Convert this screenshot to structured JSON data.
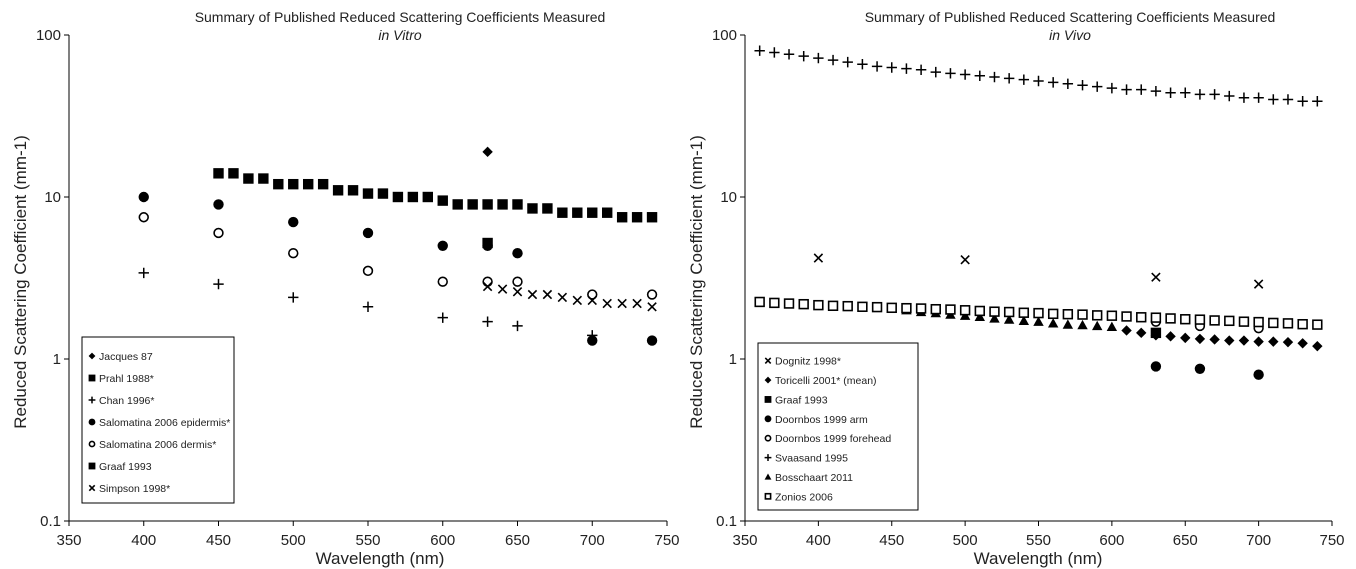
{
  "chart_data": [
    {
      "type": "scatter",
      "title": "Summary of Published Reduced Scattering Coefficients Measured",
      "subtitle": "in Vitro",
      "xlabel": "Wavelength (nm)",
      "ylabel": "Reduced Scattering Coefficient (mm-1)",
      "xlim": [
        350,
        750
      ],
      "ylim": [
        0.1,
        100
      ],
      "yscale": "log",
      "xticks": [
        "350",
        "400",
        "450",
        "500",
        "550",
        "600",
        "650",
        "700",
        "750"
      ],
      "yticks": [
        "0.1",
        "1",
        "10",
        "100"
      ],
      "legend_position": "bottom-left",
      "series": [
        {
          "name": "Jacques 87",
          "marker": "diamond",
          "x": [
            630
          ],
          "y": [
            19
          ]
        },
        {
          "name": "Prahl 1988*",
          "marker": "square",
          "x": [
            450,
            460,
            470,
            480,
            490,
            500,
            510,
            520,
            530,
            540,
            550,
            560,
            570,
            580,
            590,
            600,
            610,
            620,
            630,
            640,
            650,
            660,
            670,
            680,
            690,
            700,
            710,
            720,
            730,
            740
          ],
          "y": [
            14,
            14,
            13,
            13,
            12,
            12,
            12,
            12,
            11,
            11,
            10.5,
            10.5,
            10,
            10,
            10,
            9.5,
            9,
            9,
            9,
            9,
            9,
            8.5,
            8.5,
            8,
            8,
            8,
            8,
            7.5,
            7.5,
            7.5
          ]
        },
        {
          "name": "Chan 1996*",
          "marker": "plus",
          "x": [
            400,
            450,
            500,
            550,
            600,
            630,
            650,
            700
          ],
          "y": [
            3.4,
            2.9,
            2.4,
            2.1,
            1.8,
            1.7,
            1.6,
            1.4
          ]
        },
        {
          "name": "Salomatina 2006 epidermis*",
          "marker": "circle-filled",
          "x": [
            400,
            450,
            500,
            550,
            600,
            630,
            650,
            700,
            740
          ],
          "y": [
            10,
            9,
            7,
            6,
            5,
            5,
            4.5,
            1.3,
            1.3
          ]
        },
        {
          "name": "Salomatina 2006 dermis*",
          "marker": "circle-open",
          "x": [
            400,
            450,
            500,
            550,
            600,
            630,
            650,
            700,
            740
          ],
          "y": [
            7.5,
            6,
            4.5,
            3.5,
            3,
            3,
            3,
            2.5,
            2.5
          ]
        },
        {
          "name": "Graaf 1993",
          "marker": "square",
          "x": [
            630
          ],
          "y": [
            5.2
          ]
        },
        {
          "name": "Simpson 1998*",
          "marker": "x",
          "x": [
            630,
            640,
            650,
            660,
            670,
            680,
            690,
            700,
            710,
            720,
            730,
            740
          ],
          "y": [
            2.8,
            2.7,
            2.6,
            2.5,
            2.5,
            2.4,
            2.3,
            2.3,
            2.2,
            2.2,
            2.2,
            2.1
          ]
        }
      ]
    },
    {
      "type": "scatter",
      "title": "Summary of Published Reduced Scattering Coefficients Measured",
      "subtitle": "in Vivo",
      "xlabel": "Wavelength (nm)",
      "ylabel": "Reduced Scattering Coefficient (mm-1)",
      "xlim": [
        350,
        750
      ],
      "ylim": [
        0.1,
        100
      ],
      "yscale": "log",
      "xticks": [
        "350",
        "400",
        "450",
        "500",
        "550",
        "600",
        "650",
        "700",
        "750"
      ],
      "yticks": [
        "0.1",
        "1",
        "10",
        "100"
      ],
      "legend_position": "bottom-left",
      "series": [
        {
          "name": "Dognitz 1998*",
          "marker": "x",
          "x": [
            400,
            500,
            630,
            700
          ],
          "y": [
            4.2,
            4.1,
            3.2,
            2.9
          ]
        },
        {
          "name": "Toricelli 2001* (mean)",
          "marker": "diamond",
          "x": [
            610,
            620,
            630,
            640,
            650,
            660,
            670,
            680,
            690,
            700,
            710,
            720,
            730,
            740
          ],
          "y": [
            1.5,
            1.45,
            1.4,
            1.38,
            1.35,
            1.33,
            1.32,
            1.3,
            1.3,
            1.28,
            1.28,
            1.27,
            1.25,
            1.2
          ]
        },
        {
          "name": "Graaf 1993",
          "marker": "square",
          "x": [
            630
          ],
          "y": [
            1.45
          ]
        },
        {
          "name": "Doornbos 1999 arm",
          "marker": "circle-filled",
          "x": [
            630,
            660,
            700
          ],
          "y": [
            0.9,
            0.87,
            0.8
          ]
        },
        {
          "name": "Doornbos 1999 forehead",
          "marker": "circle-open",
          "x": [
            630,
            660,
            700
          ],
          "y": [
            1.7,
            1.6,
            1.55
          ]
        },
        {
          "name": "Svaasand 1995",
          "marker": "plus",
          "x": [
            360,
            370,
            380,
            390,
            400,
            410,
            420,
            430,
            440,
            450,
            460,
            470,
            480,
            490,
            500,
            510,
            520,
            530,
            540,
            550,
            560,
            570,
            580,
            590,
            600,
            610,
            620,
            630,
            640,
            650,
            660,
            670,
            680,
            690,
            700,
            710,
            720,
            730,
            740
          ],
          "y": [
            80,
            78,
            76,
            74,
            72,
            70,
            68,
            66,
            64,
            63,
            62,
            61,
            59,
            58,
            57,
            56,
            55,
            54,
            53,
            52,
            51,
            50,
            49,
            48,
            47,
            46,
            46,
            45,
            44,
            44,
            43,
            43,
            42,
            41,
            41,
            40,
            40,
            39,
            39
          ]
        },
        {
          "name": "Bosschaart 2011",
          "marker": "triangle",
          "x": [
            450,
            460,
            470,
            480,
            490,
            500,
            510,
            520,
            530,
            540,
            550,
            560,
            570,
            580,
            590,
            600
          ],
          "y": [
            2.05,
            2.0,
            1.95,
            1.92,
            1.88,
            1.85,
            1.82,
            1.78,
            1.75,
            1.72,
            1.7,
            1.66,
            1.63,
            1.62,
            1.6,
            1.58
          ]
        },
        {
          "name": "Zonios 2006",
          "marker": "square-open",
          "x": [
            360,
            370,
            380,
            390,
            400,
            410,
            420,
            430,
            440,
            450,
            460,
            470,
            480,
            490,
            500,
            510,
            520,
            530,
            540,
            550,
            560,
            570,
            580,
            590,
            600,
            610,
            620,
            630,
            640,
            650,
            660,
            670,
            680,
            690,
            700,
            710,
            720,
            730,
            740
          ],
          "y": [
            2.25,
            2.22,
            2.2,
            2.18,
            2.15,
            2.13,
            2.12,
            2.1,
            2.09,
            2.07,
            2.06,
            2.05,
            2.03,
            2.02,
            2.0,
            1.98,
            1.96,
            1.95,
            1.93,
            1.92,
            1.9,
            1.89,
            1.88,
            1.86,
            1.85,
            1.83,
            1.81,
            1.8,
            1.78,
            1.76,
            1.75,
            1.73,
            1.72,
            1.7,
            1.69,
            1.67,
            1.66,
            1.64,
            1.63
          ]
        }
      ]
    }
  ]
}
